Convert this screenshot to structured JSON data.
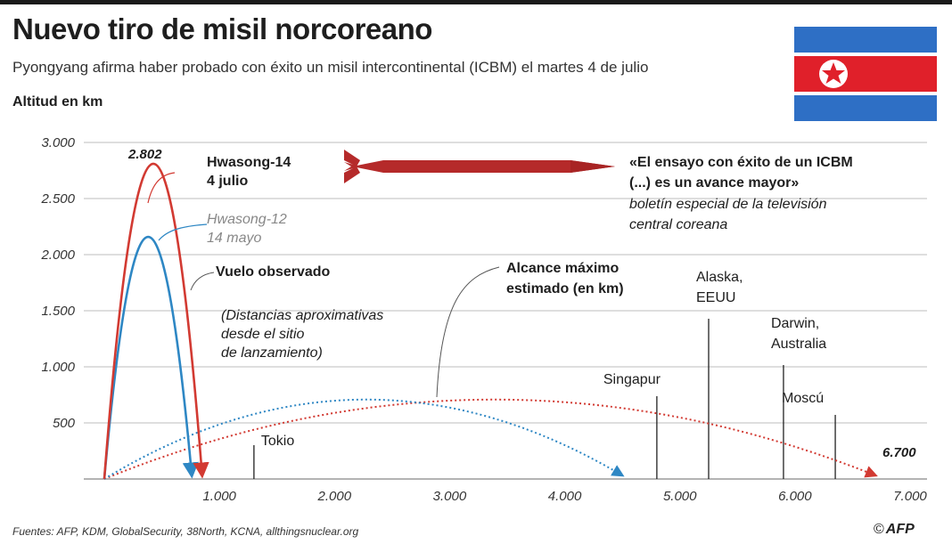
{
  "header": {
    "title": "Nuevo tiro de misil norcoreano",
    "subtitle": "Pyongyang afirma haber probado con éxito un misil intercontinental (ICBM) el martes 4 de julio",
    "y_label": "Altitud en km"
  },
  "footer": {
    "source": "Fuentes: AFP, KDM, GlobalSecurity, 38North, KCNA, allthingsnuclear.org",
    "credit_symbol": "©",
    "credit": "AFP"
  },
  "colors": {
    "hwasong14": "#d23a32",
    "hwasong12": "#2e87c4",
    "max_range": "#d23a32",
    "max_range_blue": "#2e87c4",
    "flag_blue": "#2e6fc5",
    "flag_red": "#e0202a",
    "missile": "#b52a2a"
  },
  "chart_data": {
    "type": "line",
    "xlim": [
      0,
      7000
    ],
    "ylim": [
      0,
      3000
    ],
    "x_ticks": [
      {
        "value": 1000,
        "label": "1.000"
      },
      {
        "value": 2000,
        "label": "2.000"
      },
      {
        "value": 3000,
        "label": "3.000"
      },
      {
        "value": 4000,
        "label": "4.000"
      },
      {
        "value": 5000,
        "label": "5.000"
      },
      {
        "value": 6000,
        "label": "6.000"
      },
      {
        "value": 7000,
        "label": "7.000"
      }
    ],
    "y_ticks": [
      {
        "value": 500,
        "label": "500"
      },
      {
        "value": 1000,
        "label": "1.000"
      },
      {
        "value": 1500,
        "label": "1.500"
      },
      {
        "value": 2000,
        "label": "2.000"
      },
      {
        "value": 2500,
        "label": "2.500"
      },
      {
        "value": 3000,
        "label": "3.000"
      }
    ],
    "series": [
      {
        "id": "hwasong14",
        "name": "Hwasong-14",
        "date": "4 julio",
        "apogee": 2802,
        "apogee_label": "2.802",
        "range": 850
      },
      {
        "id": "hwasong12",
        "name": "Hwasong-12",
        "date": "14 mayo",
        "apogee": 2150,
        "range": 760
      }
    ],
    "max_range": [
      {
        "series": "hwasong14",
        "range": 6700,
        "range_label": "6.700",
        "apogee": 700
      },
      {
        "series": "hwasong12",
        "range": 4500,
        "apogee": 700
      }
    ],
    "cities": [
      {
        "name": "Tokio",
        "distance": 1300
      },
      {
        "name": "Singapur",
        "distance": 4800
      },
      {
        "name": "Alaska,",
        "name2": "EEUU",
        "distance": 5250
      },
      {
        "name": "Darwin,",
        "name2": "Australia",
        "distance": 5900
      },
      {
        "name": "Moscú",
        "distance": 6350
      }
    ],
    "annotations": {
      "observed": "Vuelo observado",
      "distances_note": [
        "(Distancias aproximativas",
        "desde el sitio",
        "de lanzamiento)"
      ],
      "max_range": [
        "Alcance máximo",
        "estimado (en km)"
      ],
      "quote": [
        "«El ensayo con éxito de un ICBM",
        "(...) es un avance mayor»"
      ],
      "quote_source": [
        "boletín especial de la televisión",
        "central coreana"
      ]
    }
  }
}
